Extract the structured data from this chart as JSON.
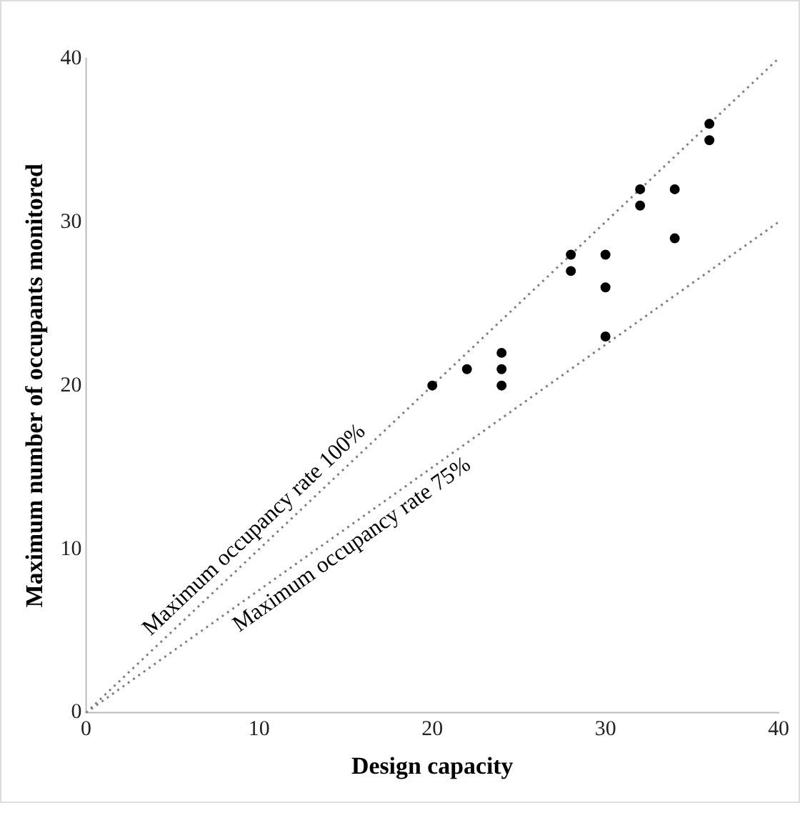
{
  "chart_data": {
    "type": "scatter",
    "xlabel": "Design capacity",
    "ylabel": "Maximum number of occupants monitored",
    "xlim": [
      0,
      40
    ],
    "ylim": [
      0,
      40
    ],
    "xticks": [
      0,
      10,
      20,
      30,
      40
    ],
    "yticks": [
      0,
      10,
      20,
      30,
      40
    ],
    "grid": false,
    "legend": false,
    "marker": "circle",
    "series": [
      {
        "color": "#000000",
        "x": [
          20,
          22,
          24,
          24,
          24,
          28,
          28,
          30,
          30,
          30,
          32,
          32,
          34,
          34,
          36,
          36
        ],
        "values": [
          20,
          21,
          22,
          21,
          20,
          28,
          27,
          28,
          26,
          23,
          32,
          31,
          32,
          29,
          36,
          35
        ]
      },
      {
        "type": "line",
        "name": "Maximum occupancy rate 100%",
        "color": "#808080",
        "line_style": "dotted",
        "marker": "none",
        "x": [
          0,
          40
        ],
        "values": [
          0,
          40
        ]
      },
      {
        "type": "line",
        "name": "Maximum occupancy rate 75%",
        "color": "#808080",
        "line_style": "dotted",
        "marker": "none",
        "x": [
          0,
          40
        ],
        "values": [
          0,
          30
        ]
      }
    ]
  }
}
